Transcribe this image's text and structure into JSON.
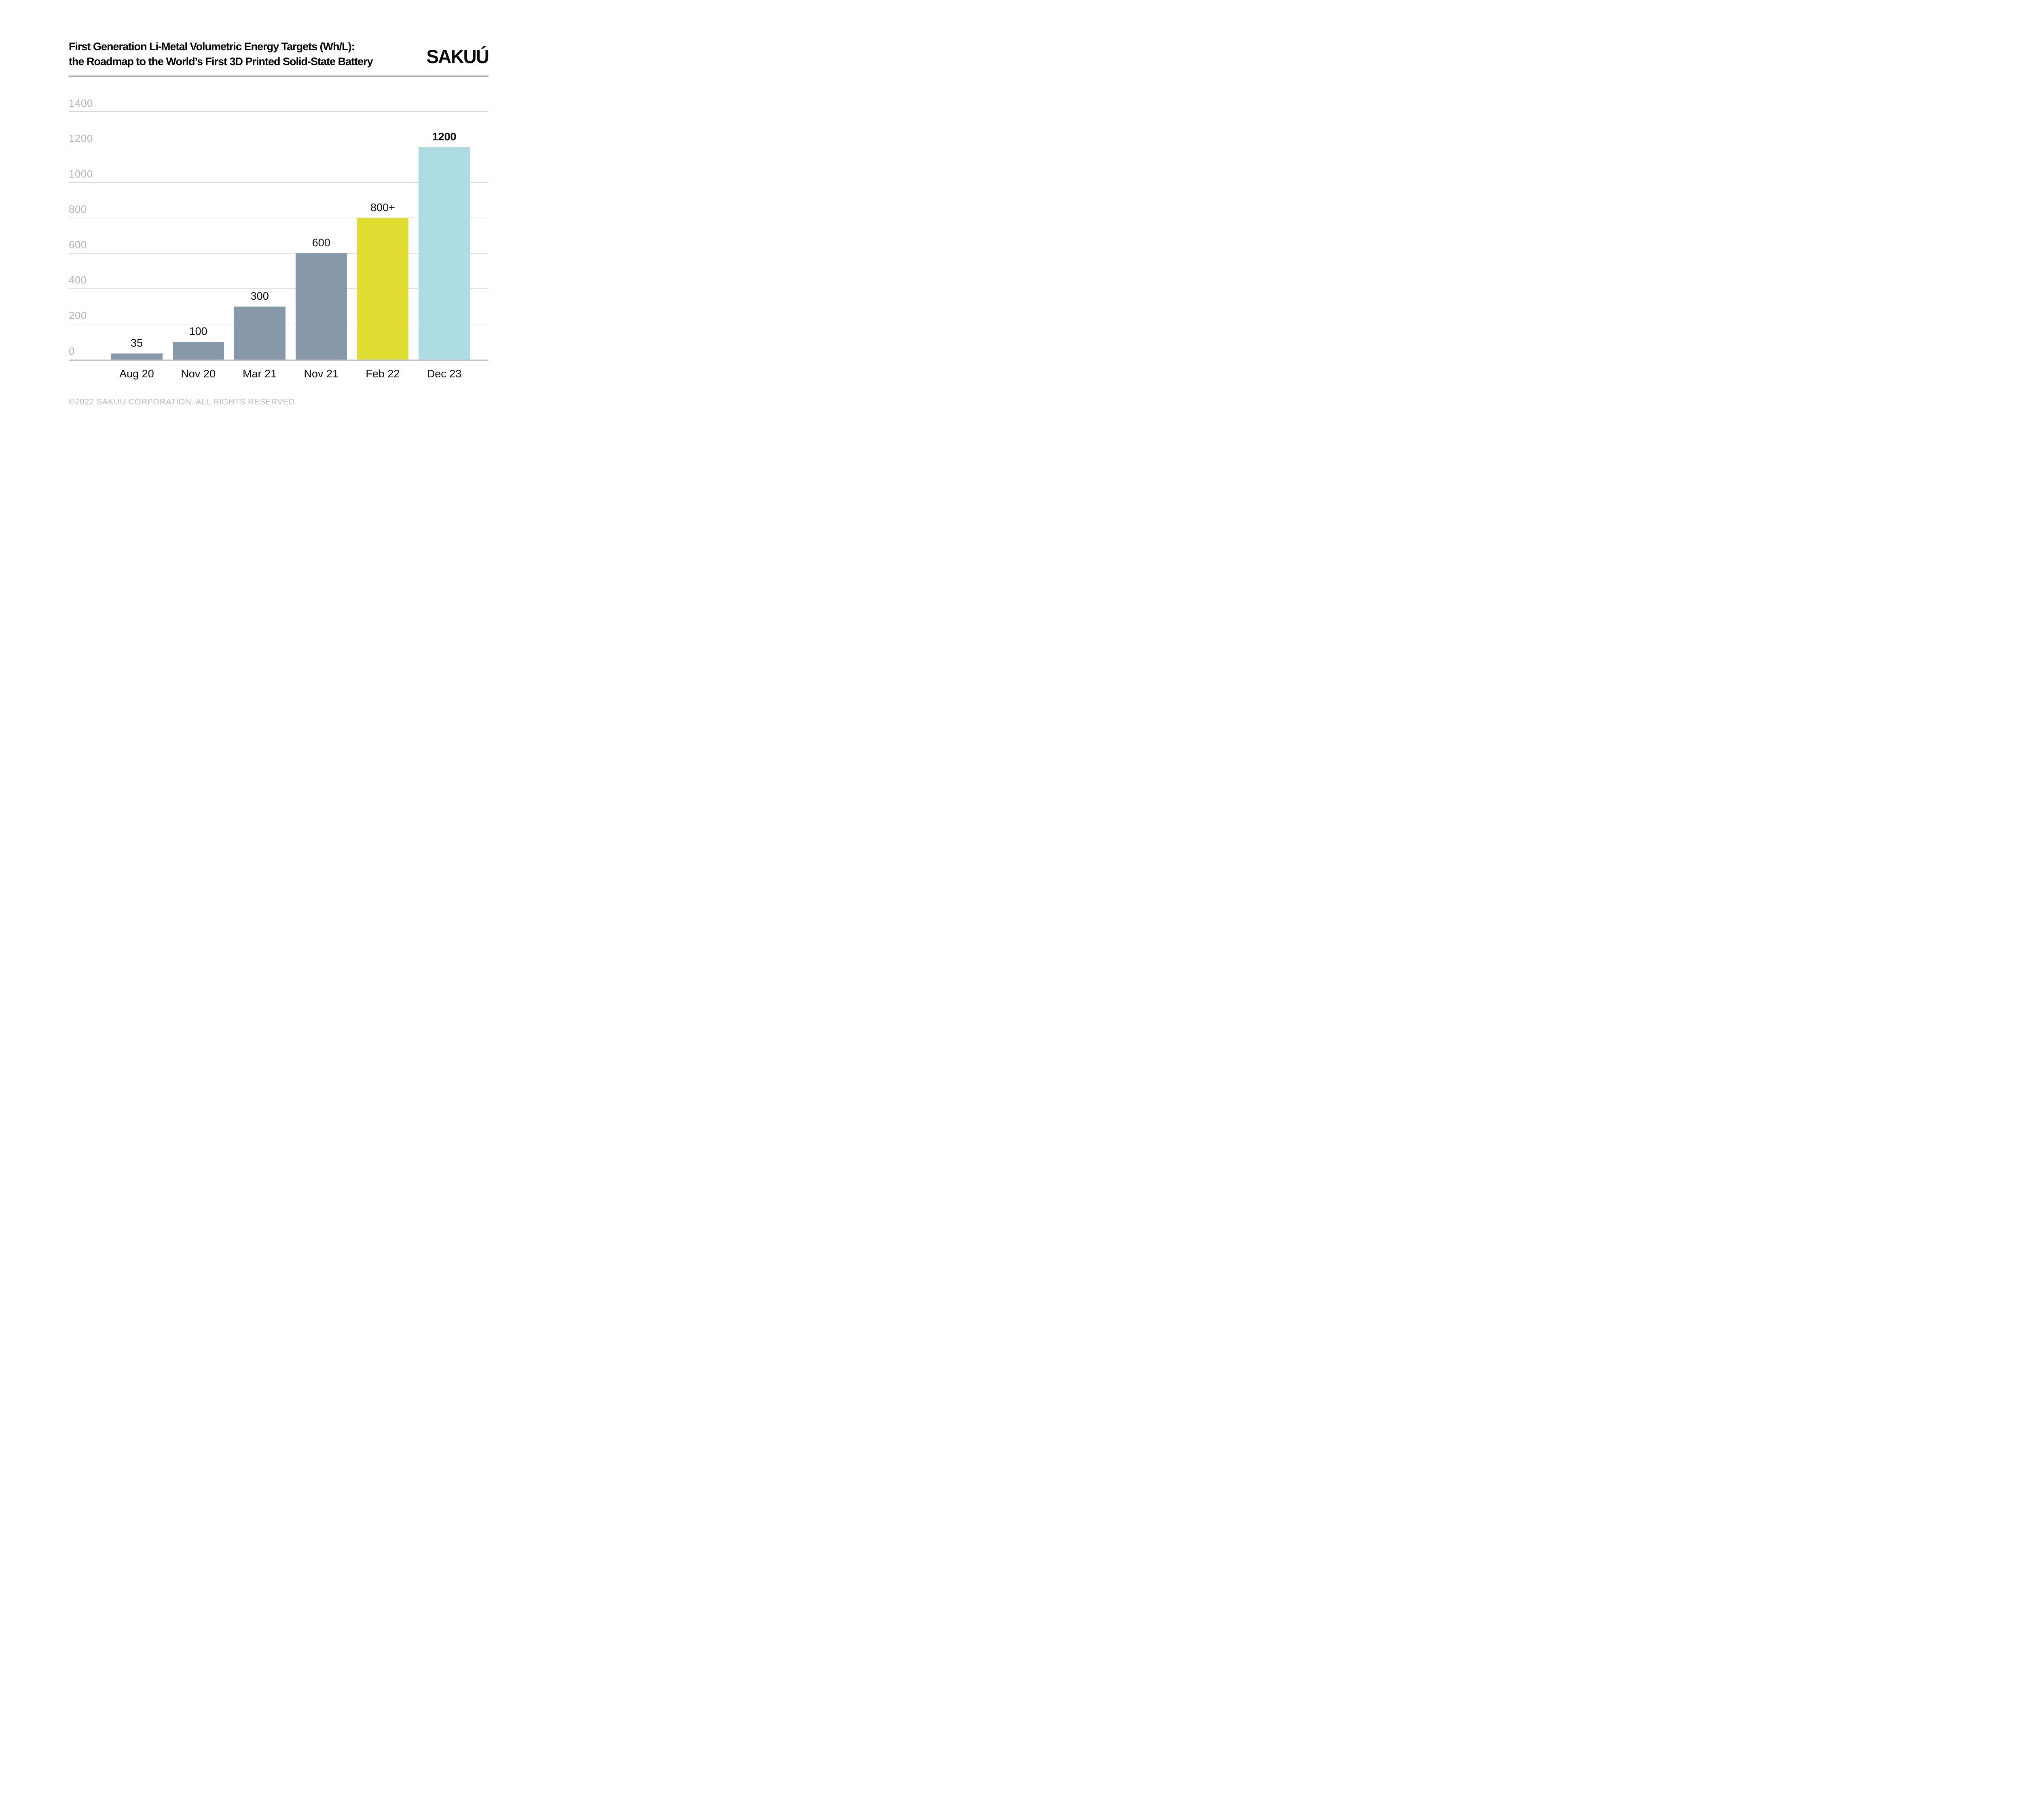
{
  "header": {
    "title_line1": "First Generation Li-Metal Volumetric Energy Targets (Wh/L):",
    "title_line2": "the Roadmap to the World’s First 3D Printed Solid-State Battery",
    "logo_text": "SAKUÚ"
  },
  "chart_data": {
    "type": "bar",
    "title": "First Generation Li-Metal Volumetric Energy Targets (Wh/L): the Roadmap to the World’s First 3D Printed Solid-State Battery",
    "categories": [
      "Aug 20",
      "Nov 20",
      "Mar 21",
      "Nov 21",
      "Feb 22",
      "Dec 23"
    ],
    "values": [
      35,
      100,
      300,
      600,
      800,
      1200
    ],
    "value_labels": [
      "35",
      "100",
      "300",
      "600",
      "800+",
      "1200"
    ],
    "value_label_bold": [
      false,
      false,
      false,
      false,
      false,
      true
    ],
    "bar_colors": [
      "#8798ab",
      "#8798ab",
      "#8798ab",
      "#8798ab",
      "#e0dd32",
      "#addce3"
    ],
    "xlabel": "",
    "ylabel": "",
    "ylim": [
      0,
      1400
    ],
    "yticks": [
      0,
      200,
      400,
      600,
      800,
      1000,
      1200,
      1400
    ],
    "grid": "horizontal",
    "legend": "none"
  },
  "footer": {
    "copyright": "©2022 SAKUU CORPORATION. ALL RIGHTS RESERVED."
  },
  "colors": {
    "bar_default": "#8798ab",
    "bar_highlight_yellow": "#e0dd32",
    "bar_highlight_cyan": "#addce3",
    "gridline": "#d8d8d8",
    "axis_baseline": "#c2c4c6",
    "y_tick_label": "#b2b6b8",
    "title_text": "#060606",
    "category_label_text": "#0a0a0a",
    "footer_text": "#bcbcbc",
    "divider": "#141414"
  }
}
